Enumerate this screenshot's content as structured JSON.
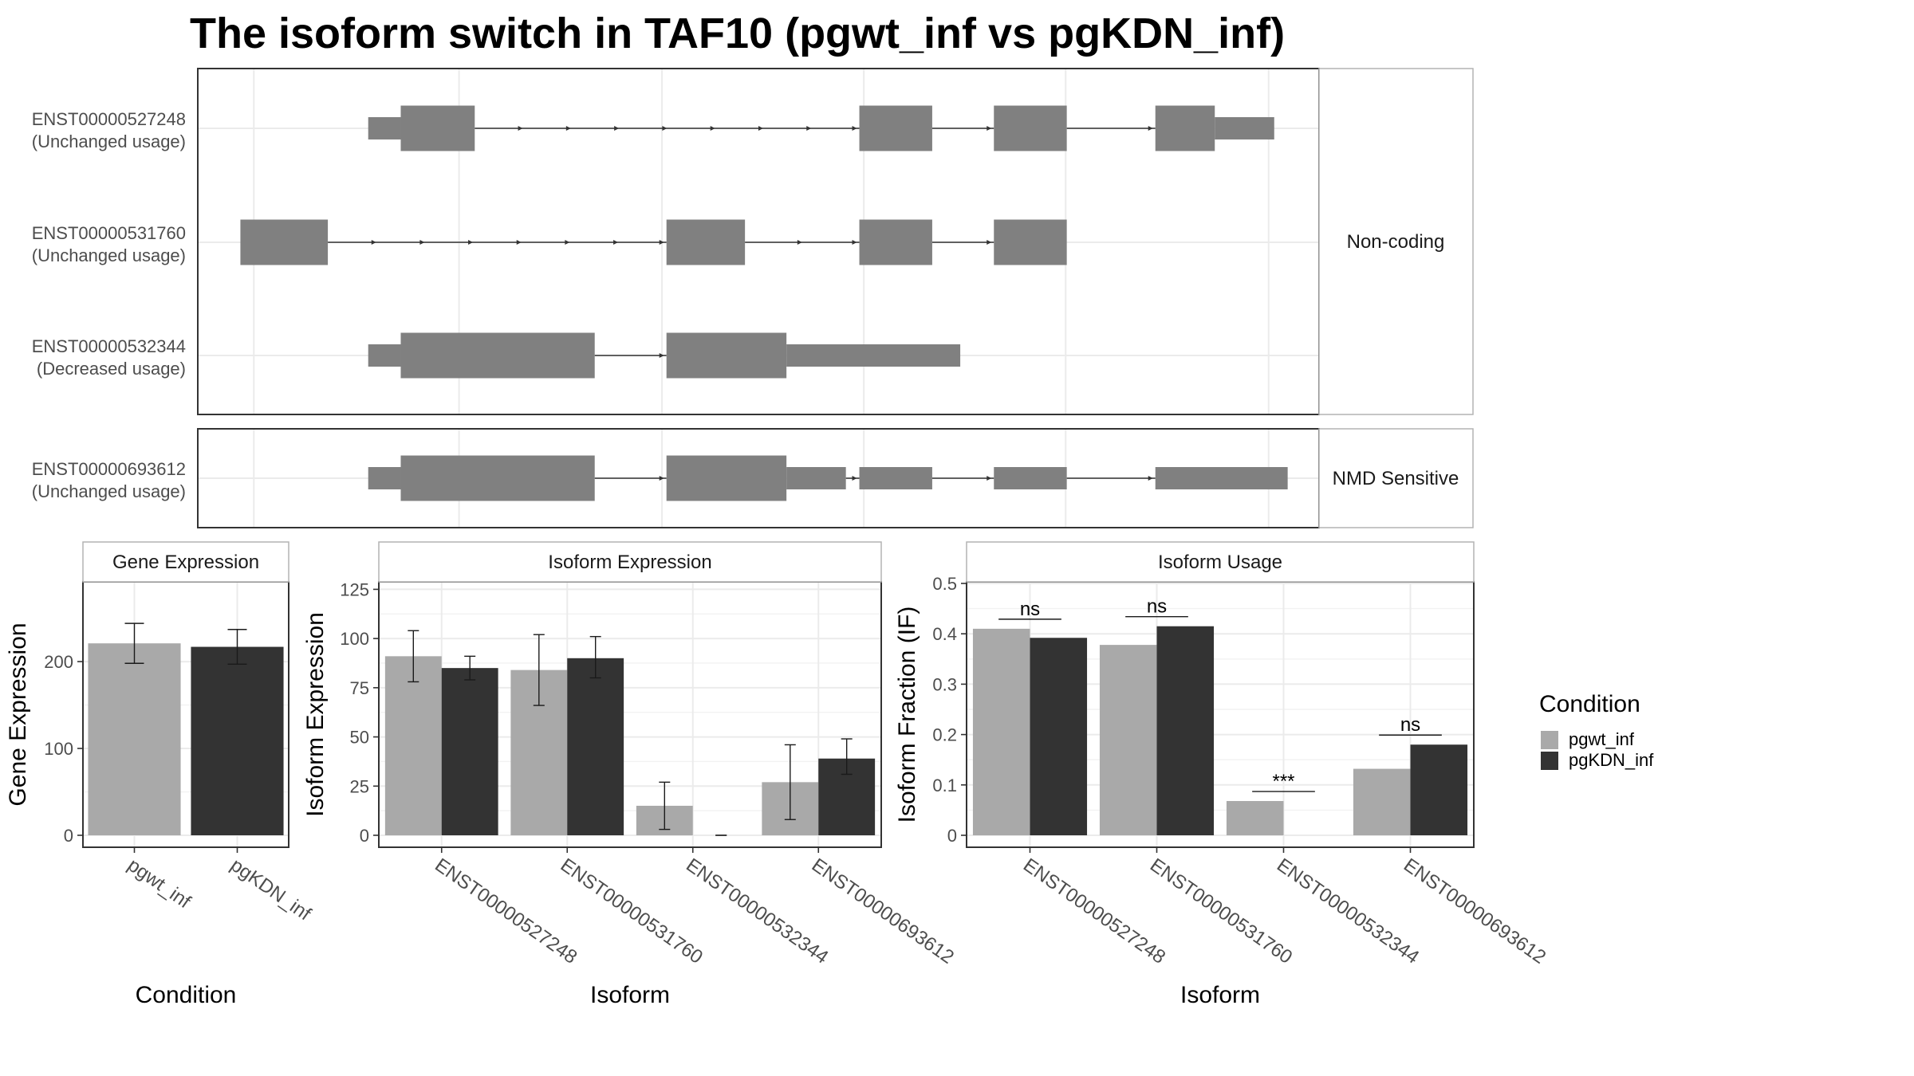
{
  "title": "The isoform switch in TAF10 (pgwt_inf vs pgKDN_inf)",
  "colors": {
    "pgwt_inf": "#A9A9A9",
    "pgKDN_inf": "#333333",
    "exon": "#808080",
    "intron": "#333333",
    "grid": "#EBEBEB",
    "panel_border": "#333333",
    "strip_border": "#B3B3B3"
  },
  "structure_panels": [
    {
      "label": "Non-coding",
      "isoforms": [
        {
          "id": "ENST00000527248",
          "status": "(Unchanged usage)",
          "exons": [
            {
              "start": 0.152,
              "end": 0.181,
              "cds": false
            },
            {
              "start": 0.181,
              "end": 0.247,
              "cds": true
            },
            {
              "start": 0.59,
              "end": 0.655,
              "cds": true
            },
            {
              "start": 0.71,
              "end": 0.775,
              "cds": true
            },
            {
              "start": 0.854,
              "end": 0.907,
              "cds": true
            },
            {
              "start": 0.907,
              "end": 0.96,
              "cds": false
            }
          ]
        },
        {
          "id": "ENST00000531760",
          "status": "(Unchanged usage)",
          "exons": [
            {
              "start": 0.038,
              "end": 0.116,
              "cds": true
            },
            {
              "start": 0.418,
              "end": 0.488,
              "cds": true
            },
            {
              "start": 0.59,
              "end": 0.655,
              "cds": true
            },
            {
              "start": 0.71,
              "end": 0.775,
              "cds": true
            }
          ]
        },
        {
          "id": "ENST00000532344",
          "status": "(Decreased usage)",
          "exons": [
            {
              "start": 0.152,
              "end": 0.181,
              "cds": false
            },
            {
              "start": 0.181,
              "end": 0.354,
              "cds": true
            },
            {
              "start": 0.418,
              "end": 0.525,
              "cds": true
            },
            {
              "start": 0.525,
              "end": 0.68,
              "cds": false
            }
          ]
        }
      ]
    },
    {
      "label": "NMD Sensitive",
      "isoforms": [
        {
          "id": "ENST00000693612",
          "status": "(Unchanged usage)",
          "exons": [
            {
              "start": 0.152,
              "end": 0.181,
              "cds": false
            },
            {
              "start": 0.181,
              "end": 0.354,
              "cds": true
            },
            {
              "start": 0.418,
              "end": 0.525,
              "cds": true
            },
            {
              "start": 0.525,
              "end": 0.578,
              "cds": false
            },
            {
              "start": 0.59,
              "end": 0.655,
              "cds": false
            },
            {
              "start": 0.71,
              "end": 0.775,
              "cds": false
            },
            {
              "start": 0.854,
              "end": 0.972,
              "cds": false
            }
          ]
        }
      ]
    }
  ],
  "legend": {
    "title": "Condition",
    "items": [
      "pgwt_inf",
      "pgKDN_inf"
    ]
  },
  "chart_data": [
    {
      "type": "bar",
      "title": "Gene Expression",
      "xlabel": "Condition",
      "ylabel": "Gene Expression",
      "ylim": [
        0,
        290
      ],
      "yticks": [
        0,
        100,
        200
      ],
      "categories": [
        "pgwt_inf",
        "pgKDN_inf"
      ],
      "values": [
        221,
        217
      ],
      "error_low": [
        198,
        197
      ],
      "error_high": [
        244,
        237
      ]
    },
    {
      "type": "bar",
      "title": "Isoform Expression",
      "xlabel": "Isoform",
      "ylabel": "Isoform Expression",
      "ylim": [
        0,
        128
      ],
      "yticks": [
        0,
        25,
        50,
        75,
        100,
        125
      ],
      "categories": [
        "ENST00000527248",
        "ENST00000531760",
        "ENST00000532344",
        "ENST00000693612"
      ],
      "series": [
        {
          "name": "pgwt_inf",
          "values": [
            91,
            84,
            15,
            27
          ],
          "error_low": [
            78,
            66,
            3,
            8
          ],
          "error_high": [
            104,
            102,
            27,
            46
          ]
        },
        {
          "name": "pgKDN_inf",
          "values": [
            85,
            90,
            0,
            39
          ],
          "error_low": [
            79,
            80,
            0,
            31
          ],
          "error_high": [
            91,
            101,
            0,
            49
          ]
        }
      ]
    },
    {
      "type": "bar",
      "title": "Isoform Usage",
      "xlabel": "Isoform",
      "ylabel": "Isoform Fraction (IF)",
      "ylim": [
        0,
        0.5
      ],
      "yticks": [
        0.0,
        0.1,
        0.2,
        0.3,
        0.4,
        0.5
      ],
      "categories": [
        "ENST00000527248",
        "ENST00000531760",
        "ENST00000532344",
        "ENST00000693612"
      ],
      "series": [
        {
          "name": "pgwt_inf",
          "values": [
            0.41,
            0.378,
            0.068,
            0.132
          ]
        },
        {
          "name": "pgKDN_inf",
          "values": [
            0.392,
            0.415,
            0.0,
            0.18
          ]
        }
      ],
      "significance": [
        "ns",
        "ns",
        "***",
        "ns"
      ]
    }
  ]
}
